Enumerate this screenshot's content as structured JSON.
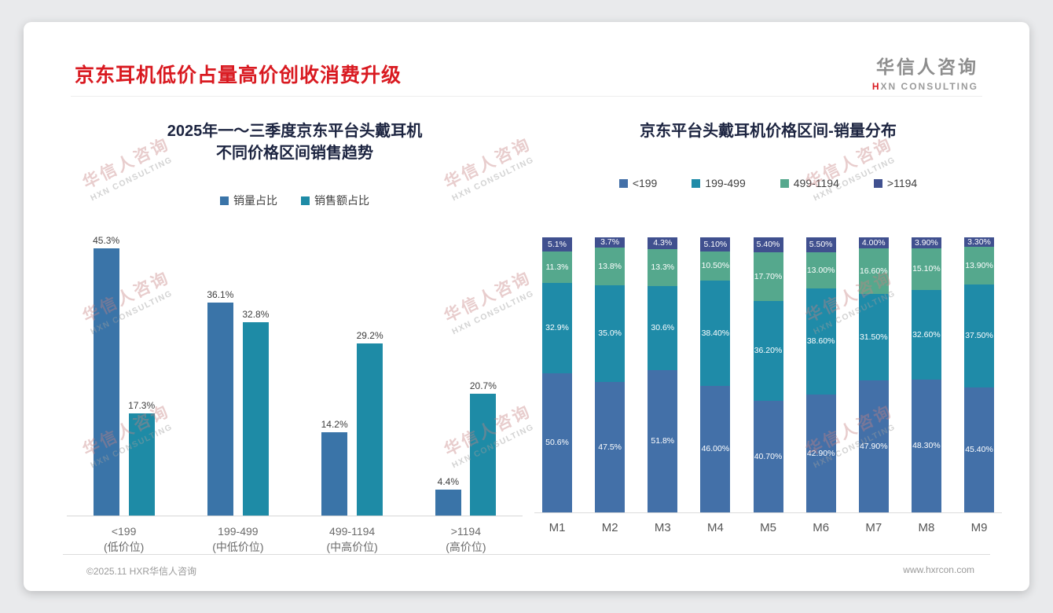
{
  "header": {
    "title": "京东耳机低价占量高价创收消费升级"
  },
  "logo": {
    "name_cn": "华信人咨询",
    "mark": "H",
    "name_en_rest": "XN CONSULTING"
  },
  "watermark": {
    "line1": "华信人咨询",
    "line2": "HXN CONSULTING"
  },
  "footer": {
    "copyright": "©2025.11 HXR华信人咨询",
    "website": "www.hxrcon.com"
  },
  "chart_data": [
    {
      "type": "bar",
      "title_lines": [
        "2025年一～三季度京东平台头戴耳机",
        "不同价格区间销售趋势"
      ],
      "categories": [
        [
          "<199",
          "(低价位)"
        ],
        [
          "199-499",
          "(中低价位)"
        ],
        [
          "499-1194",
          "(中高价位)"
        ],
        [
          ">1194",
          "(高价位)"
        ]
      ],
      "series": [
        {
          "name": "销量占比",
          "color": "#3a74a8",
          "values": [
            45.3,
            36.1,
            14.2,
            4.4
          ],
          "labels": [
            "45.3%",
            "36.1%",
            "14.2%",
            "4.4%"
          ]
        },
        {
          "name": "销售额占比",
          "color": "#1e8ba6",
          "values": [
            17.3,
            32.8,
            29.2,
            20.7
          ],
          "labels": [
            "17.3%",
            "32.8%",
            "29.2%",
            "20.7%"
          ]
        }
      ],
      "ylim": [
        0,
        50
      ],
      "grid": false,
      "legend_position": "top",
      "xlabel": "",
      "ylabel": ""
    },
    {
      "type": "stacked-bar",
      "title": "京东平台头戴耳机价格区间-销量分布",
      "categories": [
        "M1",
        "M2",
        "M3",
        "M4",
        "M5",
        "M6",
        "M7",
        "M8",
        "M9"
      ],
      "series": [
        {
          "name": "<199",
          "color": "#4370a8",
          "values": [
            50.6,
            47.5,
            51.8,
            46.0,
            40.7,
            42.9,
            47.9,
            48.3,
            45.4
          ],
          "labels": [
            "50.6%",
            "47.5%",
            "51.8%",
            "46.00%",
            "40.70%",
            "42.90%",
            "47.90%",
            "48.30%",
            "45.40%"
          ]
        },
        {
          "name": "199-499",
          "color": "#1f8ba8",
          "values": [
            32.9,
            35.0,
            30.6,
            38.4,
            36.2,
            38.6,
            31.5,
            32.6,
            37.5
          ],
          "labels": [
            "32.9%",
            "35.0%",
            "30.6%",
            "38.40%",
            "36.20%",
            "38.60%",
            "31.50%",
            "32.60%",
            "37.50%"
          ]
        },
        {
          "name": "499-1194",
          "color": "#55a88d",
          "values": [
            11.3,
            13.8,
            13.3,
            10.5,
            17.7,
            13.0,
            16.6,
            15.1,
            13.9
          ],
          "labels": [
            "11.3%",
            "13.8%",
            "13.3%",
            "10.50%",
            "17.70%",
            "13.00%",
            "16.60%",
            "15.10%",
            "13.90%"
          ]
        },
        {
          "name": ">1194",
          "color": "#40508f",
          "values": [
            5.1,
            3.7,
            4.3,
            5.1,
            5.4,
            5.5,
            4.0,
            3.9,
            3.3
          ],
          "labels": [
            "5.1%",
            "3.7%",
            "4.3%",
            "5.10%",
            "5.40%",
            "5.50%",
            "4.00%",
            "3.90%",
            "3.30%"
          ]
        }
      ],
      "ylim": [
        0,
        100
      ],
      "grid": false,
      "legend_position": "top",
      "xlabel": "",
      "ylabel": ""
    }
  ]
}
